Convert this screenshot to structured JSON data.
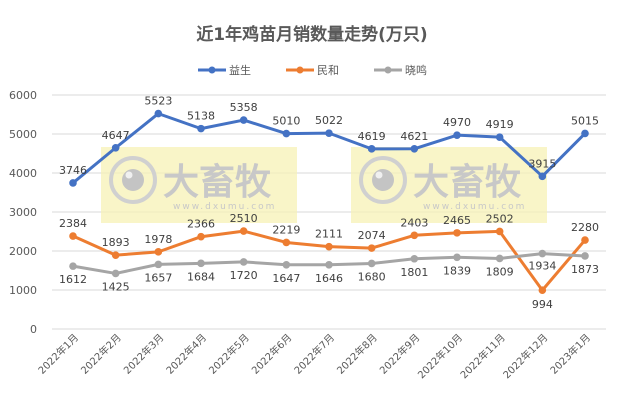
{
  "chart_data": {
    "type": "line",
    "title": "近1年鸡苗月销数量走势(万只)",
    "xlabel": "",
    "ylabel": "",
    "ylim": [
      0,
      6000
    ],
    "yticks": [
      0,
      1000,
      2000,
      3000,
      4000,
      5000,
      6000
    ],
    "grid": true,
    "legend_position": "top",
    "categories": [
      "2022年1月",
      "2022年2月",
      "2022年3月",
      "2022年4月",
      "2022年5月",
      "2022年6月",
      "2022年7月",
      "2022年8月",
      "2022年9月",
      "2022年10月",
      "2022年11月",
      "2022年12月",
      "2023年1月"
    ],
    "series": [
      {
        "name": "益生",
        "color": "#4472C4",
        "values": [
          3746,
          4647,
          5523,
          5138,
          5358,
          5010,
          5022,
          4619,
          4621,
          4970,
          4919,
          3915,
          5015
        ]
      },
      {
        "name": "民和",
        "color": "#ED7D31",
        "values": [
          2384,
          1893,
          1978,
          2366,
          2510,
          2219,
          2111,
          2074,
          2403,
          2465,
          2502,
          994,
          2280
        ]
      },
      {
        "name": "晓鸣",
        "color": "#A5A5A5",
        "values": [
          1612,
          1425,
          1657,
          1684,
          1720,
          1647,
          1646,
          1680,
          1801,
          1839,
          1809,
          1934,
          1873
        ]
      }
    ],
    "watermark": {
      "text": "大畜牧",
      "url_text": "www.dxumu.com"
    }
  }
}
